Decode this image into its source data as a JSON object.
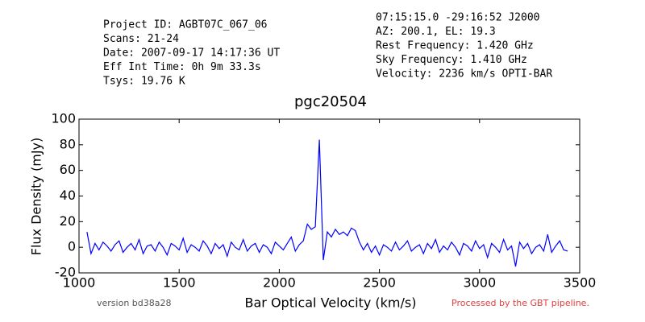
{
  "chart_data": {
    "type": "line",
    "title": "pgc20504",
    "xlabel": "Bar Optical Velocity (km/s)",
    "ylabel": "Flux Density (mJy)",
    "info_left": [
      "Project ID: AGBT07C_067_06",
      "Scans: 21-24",
      "Date: 2007-09-17 14:17:36 UT",
      "Eff Int Time: 0h 9m 33.3s",
      "Tsys: 19.76 K"
    ],
    "info_right": [
      "07:15:15.0 -29:16:52 J2000",
      "AZ: 200.1, EL: 19.3",
      "Rest Frequency:   1.420 GHz",
      "Sky Frequency:    1.410 GHz",
      "Velocity: 2236 km/s OPTI-BAR"
    ],
    "footer_left": "version bd38a28",
    "footer_right": "Processed by the GBT pipeline.",
    "xlim": [
      1000,
      3500
    ],
    "xticks": [
      1000,
      1500,
      2000,
      2500,
      3000,
      3500
    ],
    "ylim": [
      -20,
      100
    ],
    "yticks": [
      -20,
      0,
      20,
      40,
      60,
      80,
      100
    ],
    "x": [
      1040,
      1060,
      1080,
      1100,
      1120,
      1140,
      1160,
      1180,
      1200,
      1220,
      1240,
      1260,
      1280,
      1300,
      1320,
      1340,
      1360,
      1380,
      1400,
      1420,
      1440,
      1460,
      1480,
      1500,
      1520,
      1540,
      1560,
      1580,
      1600,
      1620,
      1640,
      1660,
      1680,
      1700,
      1720,
      1740,
      1760,
      1780,
      1800,
      1820,
      1840,
      1860,
      1880,
      1900,
      1920,
      1940,
      1960,
      1980,
      2000,
      2020,
      2040,
      2060,
      2080,
      2100,
      2120,
      2140,
      2160,
      2180,
      2200,
      2220,
      2240,
      2260,
      2280,
      2300,
      2320,
      2340,
      2360,
      2380,
      2400,
      2420,
      2440,
      2460,
      2480,
      2500,
      2520,
      2540,
      2560,
      2580,
      2600,
      2620,
      2640,
      2660,
      2680,
      2700,
      2720,
      2740,
      2760,
      2780,
      2800,
      2820,
      2840,
      2860,
      2880,
      2900,
      2920,
      2940,
      2960,
      2980,
      3000,
      3020,
      3040,
      3060,
      3080,
      3100,
      3120,
      3140,
      3160,
      3180,
      3200,
      3220,
      3240,
      3260,
      3280,
      3300,
      3320,
      3340,
      3360,
      3380,
      3400,
      3420,
      3440
    ],
    "series": [
      {
        "color": "#0000ff",
        "values": [
          12,
          -5,
          3,
          -2,
          4,
          1,
          -3,
          2,
          5,
          -4,
          0,
          3,
          -2,
          6,
          -5,
          1,
          2,
          -3,
          4,
          0,
          -6,
          3,
          1,
          -2,
          7,
          -4,
          2,
          0,
          -3,
          5,
          1,
          -5,
          3,
          -1,
          2,
          -7,
          4,
          0,
          -2,
          6,
          -3,
          1,
          3,
          -4,
          2,
          0,
          -5,
          4,
          1,
          -2,
          3,
          8,
          -3,
          2,
          5,
          18,
          14,
          16,
          84,
          -10,
          12,
          8,
          14,
          10,
          12,
          9,
          15,
          13,
          4,
          -2,
          3,
          -4,
          1,
          -6,
          2,
          0,
          -3,
          4,
          -2,
          1,
          5,
          -3,
          0,
          2,
          -5,
          3,
          -1,
          6,
          -4,
          1,
          -2,
          4,
          0,
          -6,
          3,
          1,
          -3,
          5,
          -1,
          2,
          -8,
          3,
          0,
          -4,
          6,
          -2,
          1,
          -15,
          4,
          -1,
          3,
          -5,
          0,
          2,
          -3,
          10,
          -4,
          1,
          5,
          -2,
          -3
        ]
      }
    ]
  }
}
